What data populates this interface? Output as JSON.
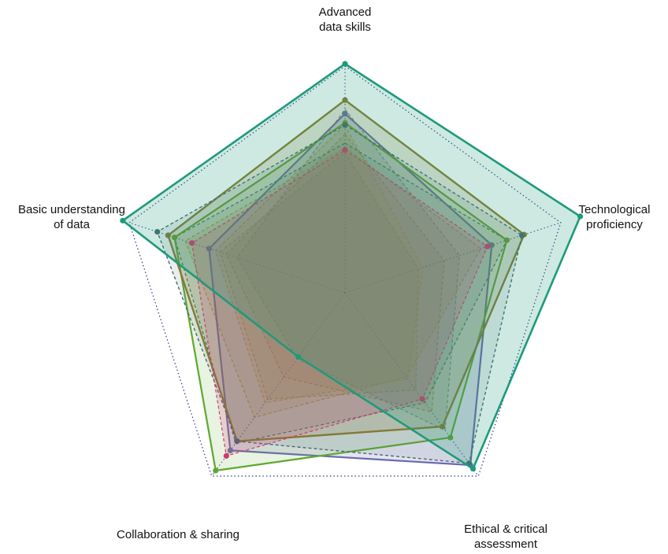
{
  "chart_data": {
    "type": "radar",
    "axes": [
      {
        "label_lines": [
          "Advanced",
          "data skills"
        ]
      },
      {
        "label_lines": [
          "Technological",
          "proficiency"
        ]
      },
      {
        "label_lines": [
          "Ethical & critical",
          "assessment"
        ]
      },
      {
        "label_lines": [
          "Collaboration & sharing"
        ]
      },
      {
        "label_lines": [
          "Basic understanding",
          "of data"
        ]
      }
    ],
    "range": [
      0,
      1
    ],
    "outline_level": 1.0,
    "grid_visible": false,
    "legend": "none",
    "series": [
      {
        "values": [
          0.81,
          0.53,
          0.75,
          0.36,
          0.5
        ],
        "color": "#7f8c9a",
        "fill_opacity": 0.18,
        "stroke_width": 1.2,
        "dashed": true,
        "markers": false
      },
      {
        "values": [
          0.7,
          0.46,
          0.65,
          0.46,
          0.55
        ],
        "color": "#c08a5a",
        "fill_opacity": 0.18,
        "stroke_width": 1.2,
        "dashed": true,
        "markers": false
      },
      {
        "values": [
          0.62,
          0.34,
          0.53,
          0.58,
          0.58
        ],
        "color": "#a8a05a",
        "fill_opacity": 0.18,
        "stroke_width": 1.2,
        "dashed": true,
        "markers": false
      },
      {
        "values": [
          0.74,
          0.36,
          0.47,
          0.6,
          0.6
        ],
        "color": "#d9a441",
        "fill_opacity": 0.18,
        "stroke_width": 1.2,
        "dashed": true,
        "markers": false
      },
      {
        "values": [
          0.64,
          0.63,
          0.46,
          0.68,
          0.74
        ],
        "color": "#c0a93a",
        "fill_opacity": 0.16,
        "stroke_width": 1.2,
        "dashed": true,
        "markers": false
      },
      {
        "values": [
          0.66,
          0.75,
          0.6,
          0.82,
          0.79
        ],
        "color": "#2e6b68",
        "fill_opacity": 0.12,
        "stroke_width": 1.2,
        "dashed": true,
        "markers": false
      },
      {
        "values": [
          0.79,
          0.68,
          0.94,
          0.86,
          0.63
        ],
        "color": "#6a6ab0",
        "fill_opacity": 0.18,
        "stroke_width": 2.2,
        "dashed": false,
        "markers": true
      },
      {
        "values": [
          0.75,
          0.75,
          0.79,
          0.97,
          0.79
        ],
        "color": "#5fa82f",
        "fill_opacity": 0.14,
        "stroke_width": 2.2,
        "dashed": false,
        "markers": true
      },
      {
        "values": [
          0.85,
          0.83,
          0.73,
          0.81,
          0.82
        ],
        "color": "#8a7d2e",
        "fill_opacity": 0.2,
        "stroke_width": 2.4,
        "dashed": false,
        "markers": true
      },
      {
        "values": [
          0.74,
          0.82,
          0.93,
          0.81,
          0.87
        ],
        "color": "#4a6a70",
        "fill_opacity": 0.12,
        "stroke_width": 1.4,
        "dashed": true,
        "markers": true
      },
      {
        "values": [
          0.63,
          0.66,
          0.58,
          0.89,
          0.71
        ],
        "color": "#d23a6e",
        "fill_opacity": 0.18,
        "stroke_width": 1.2,
        "dashed": true,
        "markers": true
      },
      {
        "values": [
          1.01,
          1.09,
          0.96,
          0.35,
          1.03
        ],
        "color": "#1e9a7c",
        "fill_opacity": 0.22,
        "stroke_width": 2.6,
        "dashed": false,
        "markers": true
      }
    ]
  }
}
